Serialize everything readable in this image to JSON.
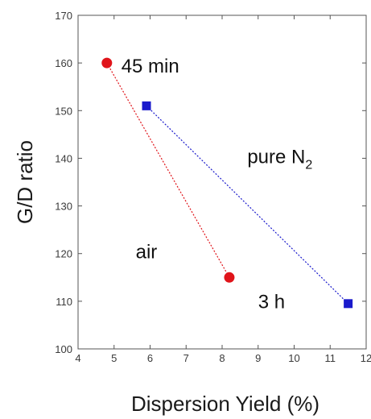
{
  "chart_data": {
    "type": "scatter",
    "xlabel": "Dispersion Yield (%)",
    "ylabel": "G/D ratio",
    "xlim": [
      4,
      12
    ],
    "ylim": [
      100,
      170
    ],
    "x_ticks": [
      4,
      5,
      6,
      7,
      8,
      9,
      10,
      11,
      12
    ],
    "y_ticks": [
      100,
      110,
      120,
      130,
      140,
      150,
      160,
      170
    ],
    "grid": false,
    "series": [
      {
        "name": "air",
        "color": "#e0141a",
        "marker": "circle",
        "line_style": "dotted",
        "points": [
          {
            "x": 4.8,
            "y": 160
          },
          {
            "x": 8.2,
            "y": 115
          }
        ]
      },
      {
        "name": "pure N2",
        "color": "#1a1acc",
        "marker": "square",
        "line_style": "dotted",
        "points": [
          {
            "x": 5.9,
            "y": 151
          },
          {
            "x": 11.5,
            "y": 109.5
          }
        ]
      }
    ],
    "annotations": [
      {
        "id": "45min",
        "text": "45 min",
        "x": 5.2,
        "y": 158
      },
      {
        "id": "air",
        "text": "air",
        "x": 5.6,
        "y": 119
      },
      {
        "id": "n2",
        "text": "pure N",
        "sub": "2",
        "x": 8.7,
        "y": 139
      },
      {
        "id": "3h",
        "text": "3 h",
        "x": 9.0,
        "y": 108.5
      }
    ]
  }
}
